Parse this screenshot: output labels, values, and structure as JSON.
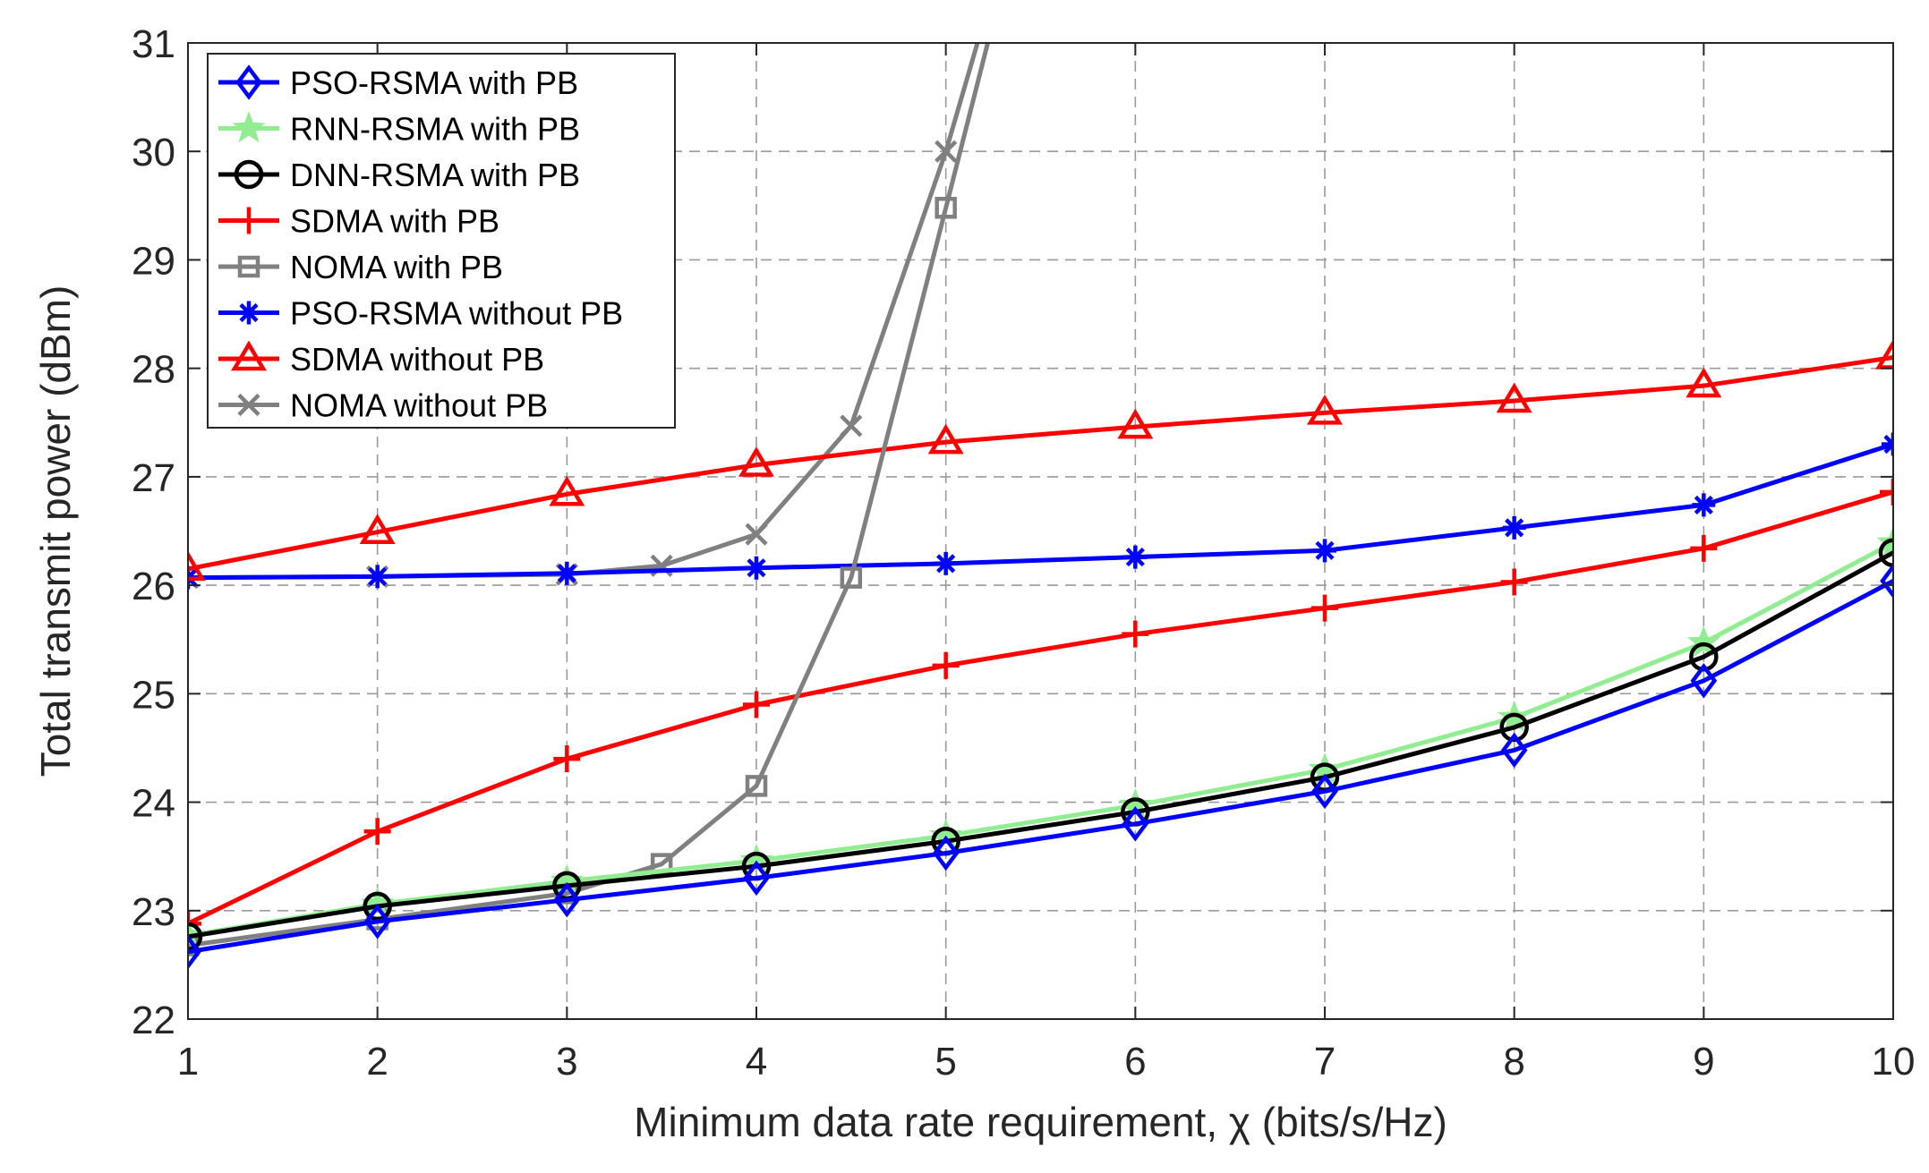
{
  "chart_data": {
    "type": "line",
    "title": "",
    "xlabel": "Minimum data rate requirement, χ  (bits/s/Hz)",
    "ylabel": "Total transmit power (dBm)",
    "xlim": [
      1,
      10
    ],
    "ylim": [
      22,
      31
    ],
    "xticks": [
      "1",
      "2",
      "3",
      "4",
      "5",
      "6",
      "7",
      "8",
      "9",
      "10"
    ],
    "yticks": [
      "22",
      "23",
      "24",
      "25",
      "26",
      "27",
      "28",
      "29",
      "30",
      "31"
    ],
    "grid": true,
    "legend_position": "top-left",
    "series": [
      {
        "name": "PSO-RSMA with PB",
        "color": "#0000ff",
        "marker": "diamond",
        "x": [
          1,
          2,
          3,
          4,
          5,
          6,
          7,
          8,
          9,
          10
        ],
        "values": [
          22.62,
          22.9,
          23.1,
          23.3,
          23.53,
          23.8,
          24.1,
          24.48,
          25.12,
          26.04
        ]
      },
      {
        "name": "RNN-RSMA with PB",
        "color": "#90ee90",
        "marker": "star",
        "x": [
          1,
          2,
          3,
          4,
          5,
          6,
          7,
          8,
          9,
          10
        ],
        "values": [
          22.77,
          23.06,
          23.27,
          23.46,
          23.69,
          23.97,
          24.3,
          24.78,
          25.47,
          26.39
        ]
      },
      {
        "name": "DNN-RSMA with PB",
        "color": "#000000",
        "marker": "circle",
        "x": [
          1,
          2,
          3,
          4,
          5,
          6,
          7,
          8,
          9,
          10
        ],
        "values": [
          22.76,
          23.04,
          23.23,
          23.41,
          23.64,
          23.91,
          24.23,
          24.69,
          25.34,
          26.3
        ]
      },
      {
        "name": "SDMA with PB",
        "color": "#ff0000",
        "marker": "plus",
        "x": [
          1,
          2,
          3,
          4,
          5,
          6,
          7,
          8,
          9,
          10
        ],
        "values": [
          22.88,
          23.73,
          24.4,
          24.9,
          25.26,
          25.55,
          25.79,
          26.03,
          26.34,
          26.86
        ]
      },
      {
        "name": "NOMA with PB",
        "color": "#808080",
        "marker": "square",
        "x": [
          1,
          2,
          3,
          3.5,
          4,
          4.5,
          5,
          5.25
        ],
        "values": [
          22.68,
          22.92,
          23.16,
          23.43,
          24.15,
          26.07,
          29.48,
          31.2
        ]
      },
      {
        "name": "PSO-RSMA without PB",
        "color": "#0000ff",
        "marker": "asterisk",
        "x": [
          1,
          2,
          3,
          4,
          5,
          6,
          7,
          8,
          9,
          10
        ],
        "values": [
          26.07,
          26.08,
          26.11,
          26.16,
          26.2,
          26.26,
          26.32,
          26.53,
          26.74,
          27.3
        ]
      },
      {
        "name": "SDMA without PB",
        "color": "#ff0000",
        "marker": "triangle",
        "x": [
          1,
          2,
          3,
          4,
          5,
          6,
          7,
          8,
          9,
          10
        ],
        "values": [
          26.15,
          26.49,
          26.84,
          27.11,
          27.32,
          27.46,
          27.59,
          27.7,
          27.84,
          28.1
        ]
      },
      {
        "name": "NOMA without PB",
        "color": "#808080",
        "marker": "x",
        "x": [
          1,
          2,
          3,
          3.5,
          4,
          4.5,
          5,
          5.2
        ],
        "values": [
          26.07,
          26.08,
          26.1,
          26.18,
          26.47,
          27.47,
          30.0,
          31.2
        ]
      }
    ]
  }
}
